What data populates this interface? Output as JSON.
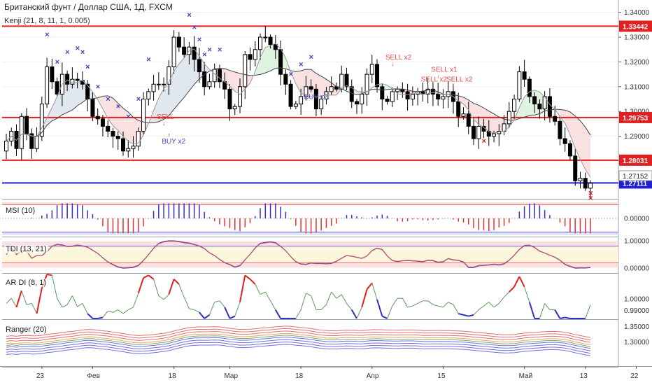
{
  "chart_data": {
    "type": "candlestick",
    "title": "Британский фунт / Доллар США, 1Д, FXCM",
    "indicator_main": "Kenji (21, 8, 11, 1, 0.005)",
    "x_tick_labels": [
      "23",
      "Фев",
      "18",
      "Мар",
      "18",
      "Апр",
      "15",
      "Май",
      "13",
      "22"
    ],
    "x_tick_index": [
      7,
      17,
      33,
      44,
      58,
      72,
      86,
      102,
      114,
      124
    ],
    "price_axis": {
      "ylim": [
        1.265,
        1.345
      ],
      "ticks": [
        "1.34000",
        "1.33000",
        "1.32000",
        "1.31000",
        "1.30000",
        "1.29000",
        "1.28000",
        "1.27000"
      ],
      "tick_values": [
        1.34,
        1.33,
        1.32,
        1.31,
        1.3,
        1.29,
        1.28,
        1.27
      ]
    },
    "horizontal_levels": [
      {
        "label": "1.33442",
        "value": 1.33442,
        "color": "#e02020"
      },
      {
        "label": "1.29753",
        "value": 1.29753,
        "color": "#e02020"
      },
      {
        "label": "1.28031",
        "value": 1.28031,
        "color": "#e02020"
      },
      {
        "label": "1.27111",
        "value": 1.27111,
        "color": "#2020d0"
      }
    ],
    "last_price_label": "1.27152",
    "last_price": 1.27152,
    "close": [
      1.288,
      1.292,
      1.285,
      1.298,
      1.291,
      1.285,
      1.29,
      1.303,
      1.318,
      1.312,
      1.307,
      1.315,
      1.311,
      1.313,
      1.3125,
      1.311,
      1.305,
      1.298,
      1.297,
      1.294,
      1.292,
      1.29,
      1.289,
      1.284,
      1.285,
      1.286,
      1.292,
      1.305,
      1.308,
      1.311,
      1.311,
      1.311,
      1.318,
      1.33,
      1.326,
      1.323,
      1.326,
      1.321,
      1.316,
      1.31,
      1.312,
      1.317,
      1.312,
      1.309,
      1.301,
      1.302,
      1.31,
      1.323,
      1.321,
      1.325,
      1.33,
      1.33,
      1.327,
      1.325,
      1.315,
      1.311,
      1.302,
      1.303,
      1.306,
      1.31,
      1.309,
      1.301,
      1.305,
      1.308,
      1.31,
      1.309,
      1.315,
      1.31,
      1.304,
      1.303,
      1.307,
      1.315,
      1.319,
      1.31,
      1.305,
      1.304,
      1.308,
      1.309,
      1.308,
      1.305,
      1.307,
      1.308,
      1.307,
      1.309,
      1.307,
      1.305,
      1.306,
      1.308,
      1.304,
      1.298,
      1.299,
      1.294,
      1.289,
      1.294,
      1.292,
      1.29,
      1.291,
      1.292,
      1.295,
      1.3,
      1.305,
      1.316,
      1.313,
      1.306,
      1.303,
      1.301,
      1.306,
      1.298,
      1.296,
      1.289,
      1.287,
      1.282,
      1.272,
      1.273,
      1.269,
      1.271
    ],
    "series": [
      {
        "name": "MSI (10)",
        "ylim": [
          -0.7,
          0.7
        ],
        "ticks": [
          "0.00000"
        ],
        "tick_values": [
          0
        ]
      },
      {
        "name": "TDI (13, 21)",
        "ylim": [
          -0.15,
          1.1
        ],
        "ticks": [
          "1.00000",
          "0.00000"
        ],
        "tick_values": [
          1.0,
          0.0
        ]
      },
      {
        "name": "AR DI (8, 1)",
        "ylim": [
          0.983,
          1.021
        ],
        "ticks": [
          "1.00000",
          "0.99000"
        ],
        "tick_values": [
          1.0,
          0.99
        ]
      },
      {
        "name": "Ranger (20)",
        "ylim": [
          1.22,
          1.37
        ],
        "ticks": [
          "1.35000",
          "1.30000"
        ],
        "tick_values": [
          1.35,
          1.3
        ]
      }
    ],
    "annotations": [
      {
        "label": "SELL",
        "index": 31,
        "value": 1.297
      },
      {
        "label": "BUY x2",
        "index": 32,
        "value": 1.287
      },
      {
        "label": "BUY x2",
        "index": 60,
        "value": 1.305
      },
      {
        "label": "SELL x2",
        "index": 76,
        "value": 1.321
      },
      {
        "label": "SELL x2",
        "index": 83,
        "value": 1.312
      },
      {
        "label": "SELL x1",
        "index": 85,
        "value": 1.316
      },
      {
        "label": "SELL x2",
        "index": 88,
        "value": 1.312
      }
    ]
  }
}
